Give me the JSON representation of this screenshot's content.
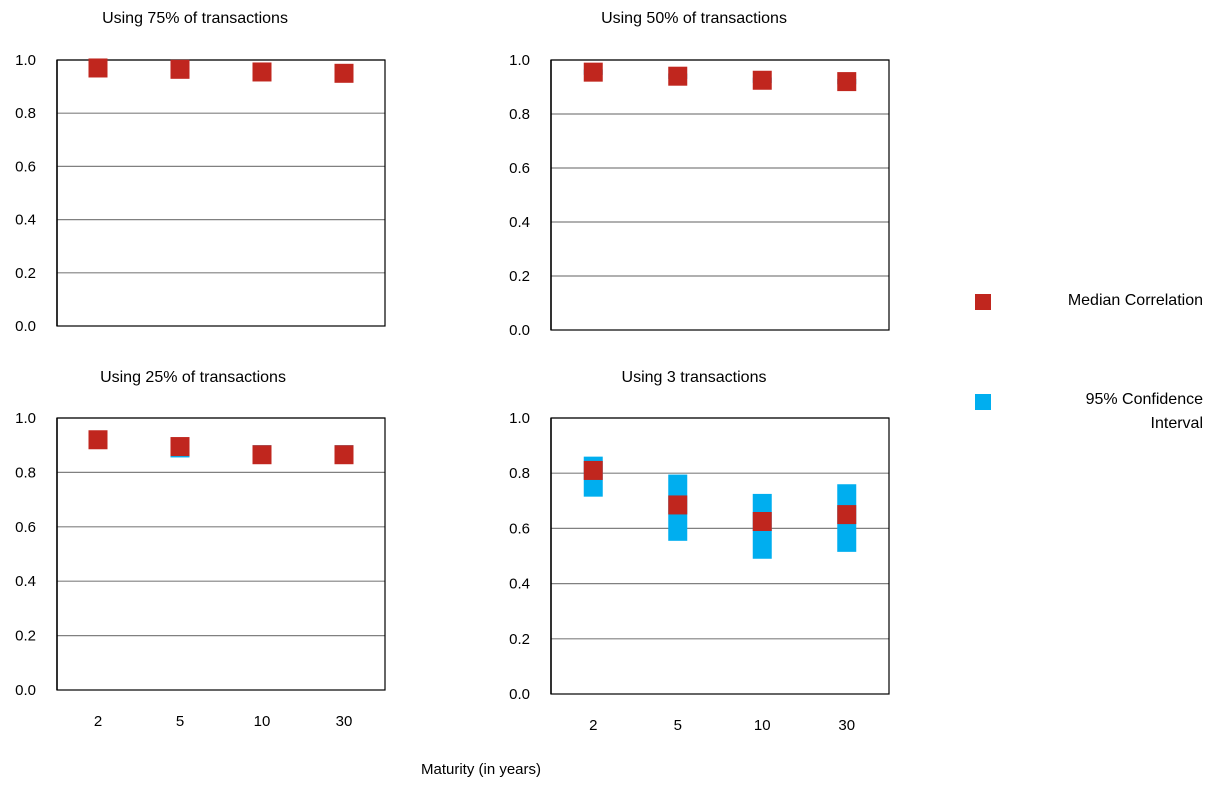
{
  "xlabel": "Maturity (in years)",
  "legend": {
    "median_label": "Median Correlation",
    "ci_label_line1": "95% Confidence",
    "ci_label_line2": "Interval"
  },
  "colors": {
    "median": "#C0261E",
    "ci": "#00AEEF",
    "grid": "#808080",
    "axis": "#000000"
  },
  "chart_data": [
    {
      "type": "scatter",
      "title": "Using 75% of transactions",
      "categories": [
        "2",
        "5",
        "10",
        "30"
      ],
      "ylim": [
        0,
        1
      ],
      "yticks": [
        "0.0",
        "0.2",
        "0.4",
        "0.6",
        "0.8",
        "1.0"
      ],
      "show_x_ticks": false,
      "median": [
        0.97,
        0.965,
        0.955,
        0.95
      ],
      "ci_low": [
        0.96,
        0.955,
        0.945,
        0.94
      ],
      "ci_high": [
        0.98,
        0.975,
        0.965,
        0.96
      ]
    },
    {
      "type": "scatter",
      "title": "Using 50% of transactions",
      "categories": [
        "2",
        "5",
        "10",
        "30"
      ],
      "ylim": [
        0,
        1
      ],
      "yticks": [
        "0.0",
        "0.2",
        "0.4",
        "0.6",
        "0.8",
        "1.0"
      ],
      "show_x_ticks": false,
      "median": [
        0.955,
        0.94,
        0.925,
        0.92
      ],
      "ci_low": [
        0.945,
        0.93,
        0.915,
        0.91
      ],
      "ci_high": [
        0.965,
        0.95,
        0.935,
        0.93
      ]
    },
    {
      "type": "scatter",
      "title": "Using 25% of transactions",
      "categories": [
        "2",
        "5",
        "10",
        "30"
      ],
      "ylim": [
        0,
        1
      ],
      "yticks": [
        "0.0",
        "0.2",
        "0.4",
        "0.6",
        "0.8",
        "1.0"
      ],
      "show_x_ticks": true,
      "median": [
        0.92,
        0.895,
        0.865,
        0.865
      ],
      "ci_low": [
        0.895,
        0.855,
        0.835,
        0.835
      ],
      "ci_high": [
        0.935,
        0.91,
        0.9,
        0.9
      ]
    },
    {
      "type": "scatter",
      "title": "Using 3 transactions",
      "categories": [
        "2",
        "5",
        "10",
        "30"
      ],
      "ylim": [
        0,
        1
      ],
      "yticks": [
        "0.0",
        "0.2",
        "0.4",
        "0.6",
        "0.8",
        "1.0"
      ],
      "show_x_ticks": true,
      "median": [
        0.81,
        0.685,
        0.625,
        0.65
      ],
      "ci_low": [
        0.715,
        0.555,
        0.49,
        0.515
      ],
      "ci_high": [
        0.86,
        0.795,
        0.725,
        0.76
      ]
    }
  ]
}
